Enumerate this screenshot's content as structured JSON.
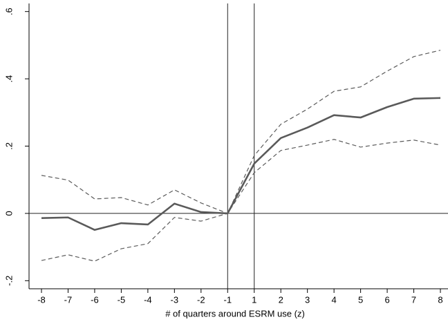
{
  "chart_data": {
    "type": "line",
    "x_label": "# of quarters around ESRM use (z)",
    "categories": [
      "-8",
      "-7",
      "-6",
      "-5",
      "-4",
      "-3",
      "-2",
      "-1",
      "1",
      "2",
      "3",
      "4",
      "5",
      "6",
      "7",
      "8"
    ],
    "series": [
      {
        "color": "#5a5a5a",
        "dash": "solid",
        "values": [
          -0.014,
          -0.012,
          -0.049,
          -0.029,
          -0.033,
          0.029,
          0.004,
          0,
          0.148,
          0.224,
          0.255,
          0.292,
          0.285,
          0.316,
          0.341,
          0.343
        ]
      },
      {
        "color": "#5a5a5a",
        "dash": "dashed",
        "values": [
          0.113,
          0.099,
          0.043,
          0.047,
          0.025,
          0.07,
          0.031,
          0,
          0.172,
          0.265,
          0.31,
          0.363,
          0.376,
          0.423,
          0.466,
          0.485
        ]
      },
      {
        "color": "#5a5a5a",
        "dash": "dashed",
        "values": [
          -0.14,
          -0.123,
          -0.142,
          -0.105,
          -0.09,
          -0.012,
          -0.023,
          0,
          0.121,
          0.187,
          0.203,
          0.22,
          0.197,
          0.209,
          0.218,
          0.203
        ]
      }
    ],
    "ylim": [
      -0.224,
      0.624
    ],
    "yticks": [
      {
        "value": -0.2,
        "label": "-.2"
      },
      0,
      {
        "value": 0.2,
        "label": ".2"
      },
      {
        "value": 0.4,
        "label": ".4"
      },
      {
        "value": 0.6,
        "label": ".6"
      }
    ],
    "hline": 0,
    "vlines": [
      "-1",
      "1"
    ]
  }
}
